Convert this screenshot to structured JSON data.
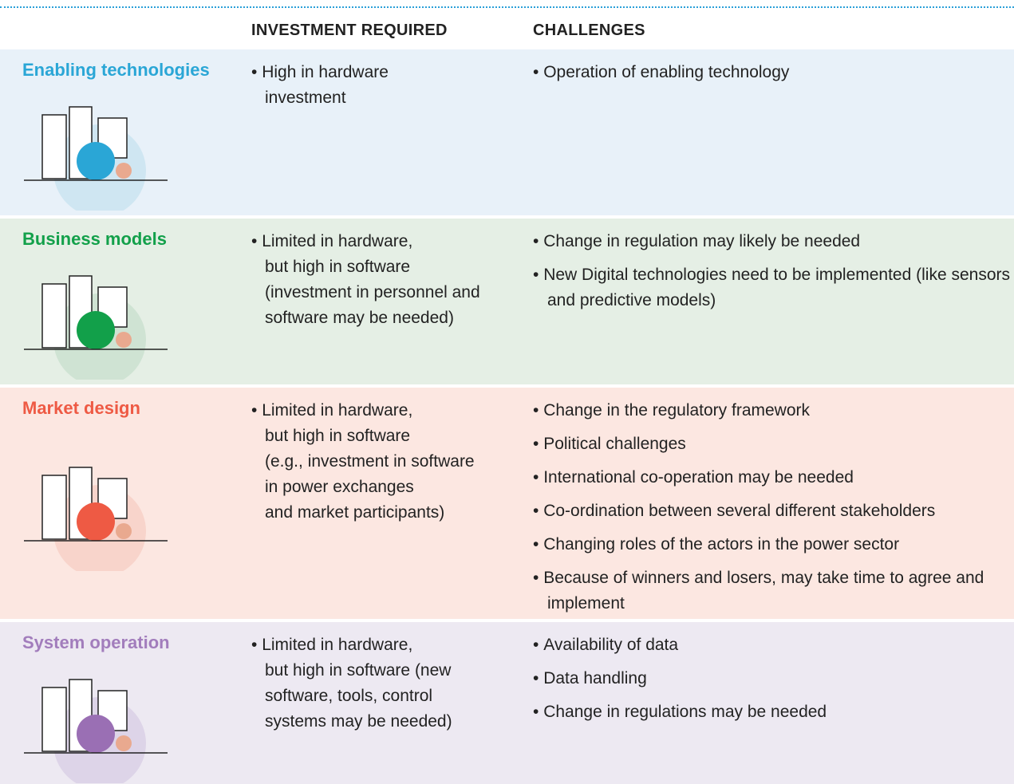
{
  "header": {
    "investment": "INVESTMENT REQUIRED",
    "challenges": "CHALLENGES"
  },
  "rows": [
    {
      "name": "Enabling technologies",
      "investment_lines": [
        "High in hardware",
        "investment"
      ],
      "challenges": [
        "Operation of enabling technology"
      ]
    },
    {
      "name": "Business models",
      "investment_lines": [
        "Limited in hardware,",
        "but high in software",
        "(investment in personnel and",
        "software may be needed)"
      ],
      "challenges": [
        "Change in regulation may likely be needed",
        "New Digital technologies need to be implemented (like sensors and predictive models)"
      ]
    },
    {
      "name": "Market design",
      "investment_lines": [
        "Limited in hardware,",
        "but high in software",
        "(e.g., investment in software",
        "in power exchanges",
        "and market participants)"
      ],
      "challenges": [
        "Change in the regulatory framework",
        "Political challenges",
        "International co-operation may be needed",
        "Co-ordination between several different stakeholders",
        "Changing roles of the actors in the power sector",
        "Because of winners and losers, may take time to agree and implement"
      ]
    },
    {
      "name": "System operation",
      "investment_lines": [
        "Limited in hardware,",
        "but high in software (new",
        "software, tools, control",
        "systems may be needed)"
      ],
      "challenges": [
        "Availability of data",
        "Data handling",
        "Change in regulations may be needed"
      ]
    }
  ]
}
